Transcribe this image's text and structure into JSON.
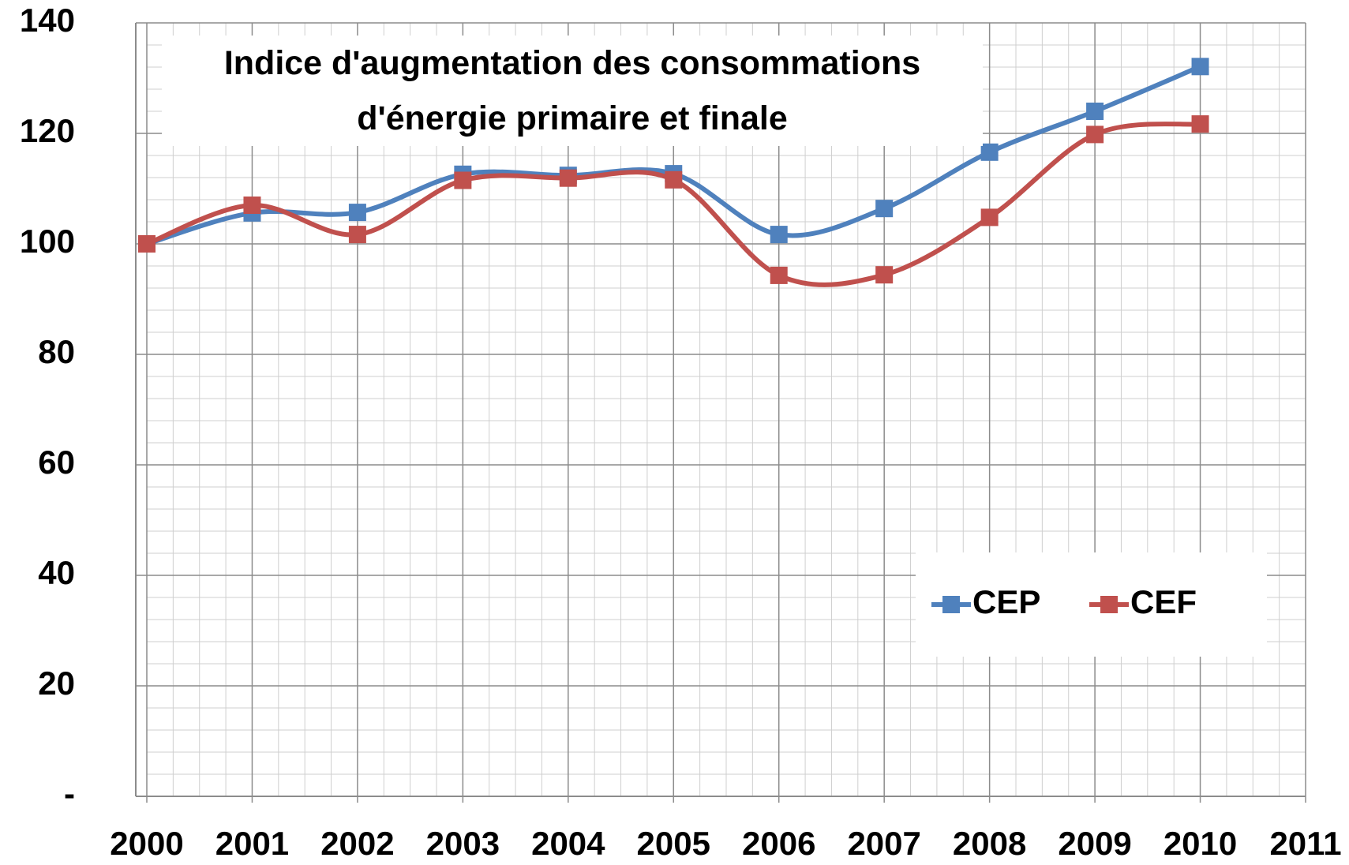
{
  "chart_data": {
    "type": "line",
    "title": "Indice d'augmentation des consommations d'énergie primaire et finale",
    "x": [
      2000,
      2001,
      2002,
      2003,
      2004,
      2005,
      2006,
      2007,
      2008,
      2009,
      2010
    ],
    "series": [
      {
        "name": "CEP",
        "color": "#4f81bd",
        "values": [
          100,
          105.6,
          105.7,
          112.6,
          112.4,
          112.7,
          101.7,
          106.4,
          116.6,
          124,
          132.1
        ]
      },
      {
        "name": "CEF",
        "color": "#c0504d",
        "values": [
          100,
          107,
          101.7,
          111.5,
          111.9,
          111.6,
          94.3,
          94.4,
          104.8,
          119.8,
          121.7
        ]
      }
    ],
    "xlim": [
      2000,
      2011
    ],
    "xticks": [
      2000,
      2001,
      2002,
      2003,
      2004,
      2005,
      2006,
      2007,
      2008,
      2009,
      2010,
      2011
    ],
    "ylim": [
      0,
      140
    ],
    "yticks": [
      {
        "value": 0,
        "label": "-"
      },
      20,
      40,
      60,
      80,
      100,
      120,
      140
    ],
    "grid": true,
    "smooth": true,
    "legend_position": "lower right"
  }
}
